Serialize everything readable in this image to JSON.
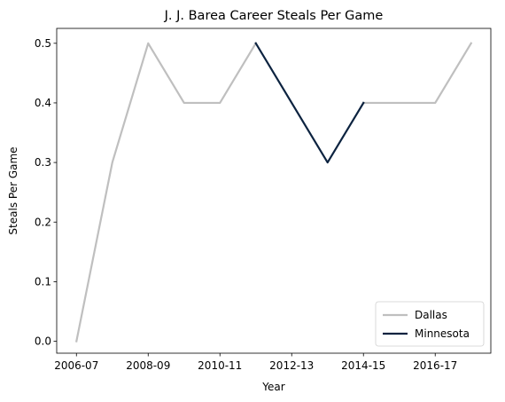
{
  "chart_data": {
    "type": "line",
    "title": "J. J. Barea Career Steals Per Game",
    "xlabel": "Year",
    "ylabel": "Steals Per Game",
    "x_categories": [
      "2006-07",
      "2007-08",
      "2008-09",
      "2009-10",
      "2010-11",
      "2011-12",
      "2012-13",
      "2013-14",
      "2014-15",
      "2015-16",
      "2016-17",
      "2017-18"
    ],
    "x_tick_labels": [
      "2006-07",
      "2008-09",
      "2010-11",
      "2012-13",
      "2014-15",
      "2016-17"
    ],
    "ylim": [
      -0.02,
      0.525
    ],
    "yticks": [
      0.0,
      0.1,
      0.2,
      0.3,
      0.4,
      0.5
    ],
    "grid": false,
    "legend_position": "lower-right",
    "series": [
      {
        "name": "Dallas",
        "color": "#bfbfbf",
        "segments": [
          {
            "x": [
              "2006-07",
              "2007-08",
              "2008-09",
              "2009-10",
              "2010-11",
              "2011-12"
            ],
            "y": [
              0.0,
              0.3,
              0.5,
              0.4,
              0.4,
              0.5
            ]
          },
          {
            "x": [
              "2014-15",
              "2015-16",
              "2016-17",
              "2017-18"
            ],
            "y": [
              0.4,
              0.4,
              0.4,
              0.5
            ]
          }
        ]
      },
      {
        "name": "Minnesota",
        "color": "#0c2340",
        "segments": [
          {
            "x": [
              "2011-12",
              "2012-13",
              "2013-14",
              "2014-15"
            ],
            "y": [
              0.5,
              0.4,
              0.3,
              0.4
            ]
          }
        ]
      }
    ]
  }
}
